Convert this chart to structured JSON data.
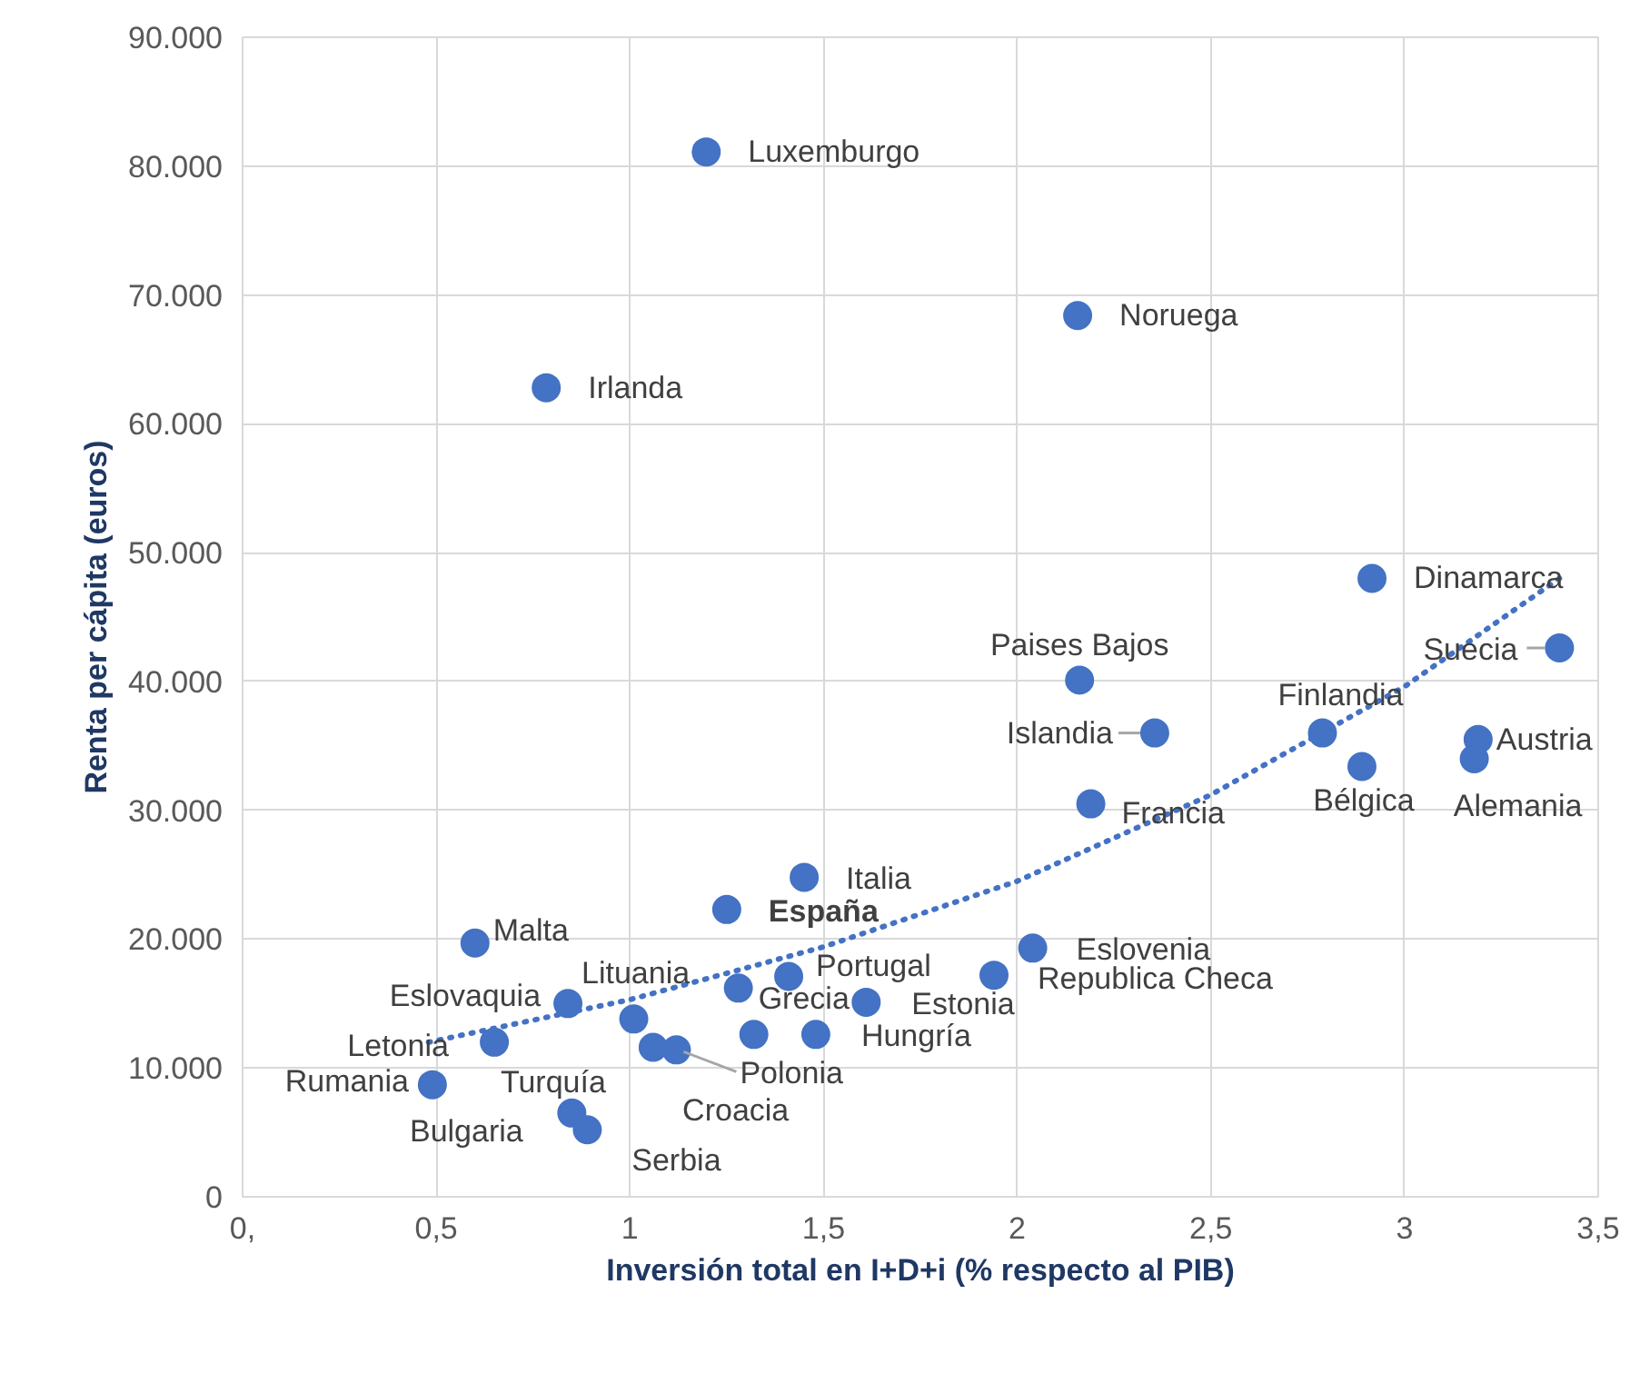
{
  "chart_data": {
    "type": "scatter",
    "xlabel": "Inversión total en I+D+i (% respecto al PIB)",
    "ylabel": "Renta per cápita (euros)",
    "xlim": [
      0,
      3.5
    ],
    "xticks": [
      {
        "value": 0,
        "label": "0,"
      },
      {
        "value": 0.5,
        "label": "0,5"
      },
      1,
      {
        "value": 1.5,
        "label": "1,5"
      },
      2,
      {
        "value": 2.5,
        "label": "2,5"
      },
      3,
      {
        "value": 3.5,
        "label": "3,5"
      }
    ],
    "ylim": [
      0,
      90000
    ],
    "yticks": [
      0,
      {
        "value": 10000,
        "label": "10.000"
      },
      {
        "value": 20000,
        "label": "20.000"
      },
      {
        "value": 30000,
        "label": "30.000"
      },
      {
        "value": 40000,
        "label": "40.000"
      },
      {
        "value": 50000,
        "label": "50.000"
      },
      {
        "value": 60000,
        "label": "60.000"
      },
      {
        "value": 70000,
        "label": "70.000"
      },
      {
        "value": 80000,
        "label": "80.000"
      },
      {
        "value": 90000,
        "label": "90.000"
      }
    ],
    "grid": true,
    "series": [
      {
        "marker": "circle",
        "color": "#4472c4",
        "x": [
          1.197,
          2.156,
          0.784,
          2.916,
          3.4,
          2.161,
          2.355,
          2.788,
          3.19,
          3.18,
          2.89,
          2.19,
          1.45,
          1.25,
          0.6,
          2.04,
          1.94,
          1.41,
          1.28,
          1.61,
          0.84,
          1.01,
          0.65,
          1.32,
          1.48,
          1.06,
          1.12,
          0.49,
          0.85,
          0.89
        ],
        "values": [
          81100,
          68400,
          62800,
          48000,
          42600,
          40100,
          36000,
          36000,
          35500,
          34000,
          33400,
          30500,
          24800,
          22300,
          19700,
          19300,
          17200,
          17100,
          16200,
          15100,
          15000,
          13800,
          12000,
          12600,
          12600,
          11600,
          11400,
          8700,
          6500,
          5200
        ]
      },
      {
        "type": "line",
        "line_style": "dotted",
        "color": "#4472c4",
        "x": [
          0.48,
          1.0,
          1.5,
          2.0,
          2.5,
          3.0,
          3.4
        ],
        "values": [
          12000,
          15300,
          19400,
          24500,
          31200,
          39600,
          48000
        ]
      }
    ],
    "annotations": [
      {
        "text": "Luxemburgo",
        "x": 1.197,
        "y": 81100
      },
      {
        "text": "Noruega",
        "x": 2.156,
        "y": 68400
      },
      {
        "text": "Irlanda",
        "x": 0.784,
        "y": 62800
      },
      {
        "text": "Dinamarca",
        "x": 2.916,
        "y": 48000
      },
      {
        "text": "Suecia",
        "x": 3.4,
        "y": 42600
      },
      {
        "text": "Paises Bajos",
        "x": 2.161,
        "y": 40100
      },
      {
        "text": "Islandia",
        "x": 2.355,
        "y": 36000
      },
      {
        "text": "Finlandia",
        "x": 2.788,
        "y": 36000
      },
      {
        "text": "Austria",
        "x": 3.19,
        "y": 35500
      },
      {
        "text": "Alemania",
        "x": 3.18,
        "y": 34000
      },
      {
        "text": "Bélgica",
        "x": 2.89,
        "y": 33400
      },
      {
        "text": "Francia",
        "x": 2.19,
        "y": 30500
      },
      {
        "text": "Italia",
        "x": 1.45,
        "y": 24800
      },
      {
        "text": "España",
        "x": 1.25,
        "y": 22300
      },
      {
        "text": "Malta",
        "x": 0.6,
        "y": 19700
      },
      {
        "text": "Eslovenia",
        "x": 2.04,
        "y": 19300
      },
      {
        "text": "Republica Checa",
        "x": 1.94,
        "y": 17200
      },
      {
        "text": "Portugal",
        "x": 1.41,
        "y": 17100
      },
      {
        "text": "Grecia",
        "x": 1.28,
        "y": 16200
      },
      {
        "text": "Estonia",
        "x": 1.61,
        "y": 15100
      },
      {
        "text": "Eslovaquia",
        "x": 0.84,
        "y": 15000
      },
      {
        "text": "Lituania",
        "x": 1.01,
        "y": 13800
      },
      {
        "text": "Letonia",
        "x": 0.65,
        "y": 12000
      },
      {
        "text": "Croacia",
        "x": 1.32,
        "y": 12600
      },
      {
        "text": "Hungría",
        "x": 1.48,
        "y": 12600
      },
      {
        "text": "Turquía",
        "x": 1.06,
        "y": 11600
      },
      {
        "text": "Polonia",
        "x": 1.12,
        "y": 11400
      },
      {
        "text": "Rumania",
        "x": 0.49,
        "y": 8700
      },
      {
        "text": "Bulgaria",
        "x": 0.85,
        "y": 6500
      },
      {
        "text": "Serbia",
        "x": 0.89,
        "y": 5200
      }
    ]
  }
}
